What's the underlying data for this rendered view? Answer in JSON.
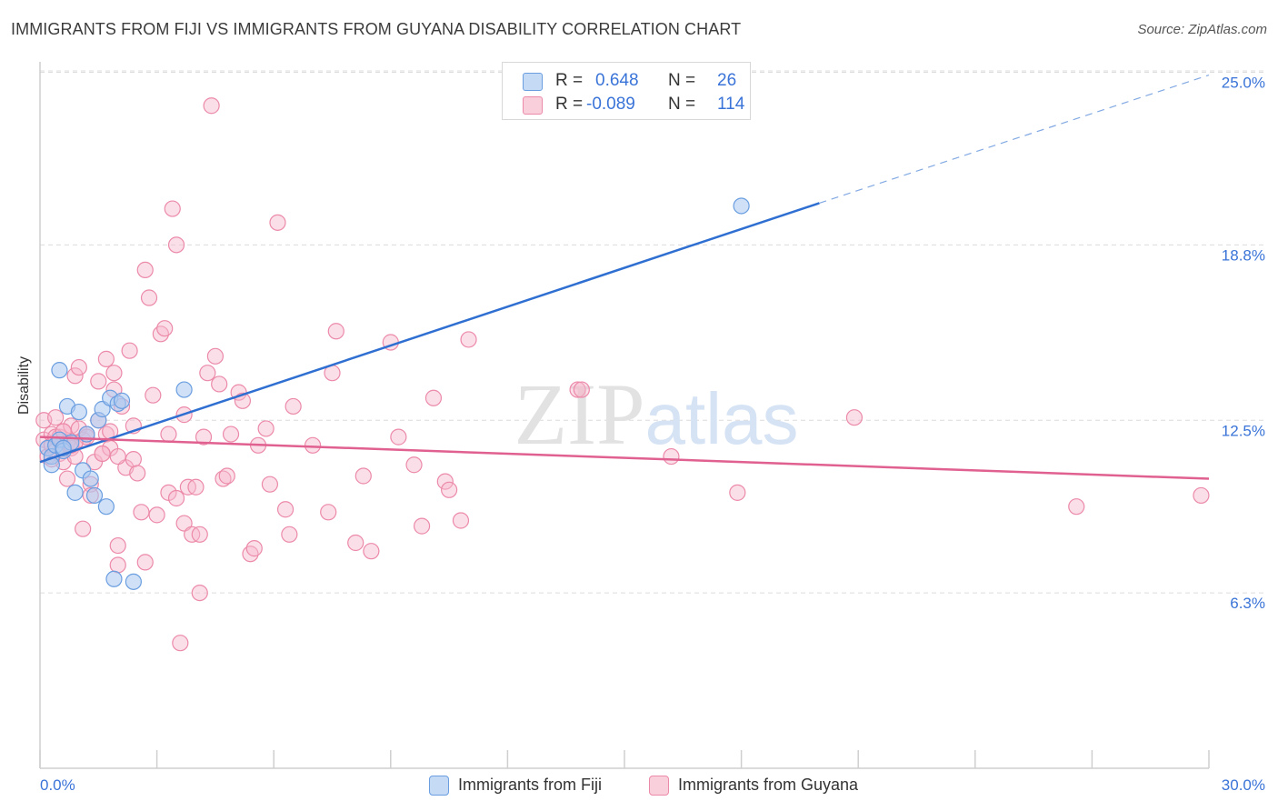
{
  "title": "IMMIGRANTS FROM FIJI VS IMMIGRANTS FROM GUYANA DISABILITY CORRELATION CHART",
  "source": "Source: ZipAtlas.com",
  "watermark": "ZIPatlas",
  "colors": {
    "fiji_fill": "#a9c8f0",
    "fiji_stroke": "#6a9ee0",
    "fiji_line": "#2f6fd1",
    "guyana_fill": "#f6b8cb",
    "guyana_stroke": "#ec8aa9",
    "guyana_line": "#e0608f",
    "tick_label": "#3a74d8",
    "grid": "#dcdcdc"
  },
  "legend": {
    "r_label": "R =",
    "n_label": "N =",
    "fiji": {
      "r": "0.648",
      "n": "26"
    },
    "guyana": {
      "r": "-0.089",
      "n": "114"
    }
  },
  "chart_data": {
    "type": "scatter",
    "ylabel": "Disability",
    "xlim": [
      0,
      30
    ],
    "ylim": [
      0,
      26
    ],
    "x_tick_labels": [
      "0.0%",
      "30.0%"
    ],
    "y_ticks": [
      6.3,
      12.5,
      18.8,
      25.0
    ],
    "y_tick_labels": [
      "6.3%",
      "12.5%",
      "18.8%",
      "25.0%"
    ],
    "grid": "horizontal dashed",
    "legend_position": "top-center",
    "series": [
      {
        "name": "Immigrants from Fiji",
        "trend": {
          "x": [
            0,
            20
          ],
          "y": [
            11.0,
            20.3
          ],
          "dashed_extension_to": [
            30,
            24.9
          ]
        },
        "points": [
          [
            0.2,
            11.5
          ],
          [
            0.3,
            11.2
          ],
          [
            0.3,
            10.9
          ],
          [
            0.4,
            11.6
          ],
          [
            0.5,
            11.8
          ],
          [
            0.5,
            14.3
          ],
          [
            0.6,
            11.4
          ],
          [
            0.7,
            13.0
          ],
          [
            0.8,
            11.7
          ],
          [
            0.9,
            9.9
          ],
          [
            1.0,
            12.8
          ],
          [
            1.1,
            10.7
          ],
          [
            1.2,
            12.0
          ],
          [
            1.3,
            10.4
          ],
          [
            1.4,
            9.8
          ],
          [
            1.5,
            12.5
          ],
          [
            1.6,
            12.9
          ],
          [
            1.7,
            9.4
          ],
          [
            1.8,
            13.3
          ],
          [
            1.9,
            6.8
          ],
          [
            2.0,
            13.1
          ],
          [
            2.1,
            13.2
          ],
          [
            2.4,
            6.7
          ],
          [
            3.7,
            13.6
          ],
          [
            18.0,
            20.2
          ],
          [
            0.6,
            11.5
          ]
        ]
      },
      {
        "name": "Immigrants from Guyana",
        "trend": {
          "x": [
            0,
            30
          ],
          "y": [
            11.9,
            10.4
          ]
        },
        "points": [
          [
            0.1,
            11.8
          ],
          [
            0.1,
            12.5
          ],
          [
            0.2,
            11.5
          ],
          [
            0.2,
            11.2
          ],
          [
            0.3,
            12.0
          ],
          [
            0.3,
            11.6
          ],
          [
            0.4,
            11.4
          ],
          [
            0.4,
            12.6
          ],
          [
            0.5,
            11.3
          ],
          [
            0.5,
            11.9
          ],
          [
            0.6,
            12.1
          ],
          [
            0.6,
            11.0
          ],
          [
            0.7,
            11.7
          ],
          [
            0.7,
            10.4
          ],
          [
            0.8,
            11.5
          ],
          [
            0.8,
            12.3
          ],
          [
            0.9,
            14.1
          ],
          [
            0.9,
            11.2
          ],
          [
            1.0,
            14.4
          ],
          [
            1.0,
            12.2
          ],
          [
            1.1,
            8.6
          ],
          [
            1.1,
            11.8
          ],
          [
            1.2,
            11.9
          ],
          [
            1.3,
            10.2
          ],
          [
            1.3,
            9.8
          ],
          [
            1.4,
            11.0
          ],
          [
            1.5,
            12.5
          ],
          [
            1.5,
            13.9
          ],
          [
            1.6,
            11.3
          ],
          [
            1.7,
            12.0
          ],
          [
            1.7,
            14.7
          ],
          [
            1.8,
            11.5
          ],
          [
            1.8,
            12.1
          ],
          [
            1.9,
            14.2
          ],
          [
            1.9,
            13.6
          ],
          [
            2.0,
            8.0
          ],
          [
            2.0,
            7.3
          ],
          [
            2.1,
            13.0
          ],
          [
            2.2,
            10.8
          ],
          [
            2.3,
            15.0
          ],
          [
            2.4,
            12.3
          ],
          [
            2.4,
            11.1
          ],
          [
            2.5,
            10.6
          ],
          [
            2.6,
            9.2
          ],
          [
            2.7,
            17.9
          ],
          [
            2.7,
            7.4
          ],
          [
            2.8,
            16.9
          ],
          [
            2.9,
            13.4
          ],
          [
            3.0,
            9.1
          ],
          [
            3.1,
            15.6
          ],
          [
            3.2,
            15.8
          ],
          [
            3.3,
            12.0
          ],
          [
            3.3,
            9.9
          ],
          [
            3.4,
            20.1
          ],
          [
            3.5,
            18.8
          ],
          [
            3.5,
            9.7
          ],
          [
            3.6,
            4.5
          ],
          [
            3.7,
            12.7
          ],
          [
            3.7,
            8.8
          ],
          [
            3.8,
            10.1
          ],
          [
            3.9,
            8.4
          ],
          [
            4.0,
            10.1
          ],
          [
            4.1,
            6.3
          ],
          [
            4.1,
            8.4
          ],
          [
            4.2,
            11.9
          ],
          [
            4.3,
            14.2
          ],
          [
            4.4,
            23.8
          ],
          [
            4.5,
            14.8
          ],
          [
            4.6,
            13.8
          ],
          [
            4.7,
            10.4
          ],
          [
            4.8,
            10.5
          ],
          [
            4.9,
            12.0
          ],
          [
            5.1,
            13.5
          ],
          [
            5.2,
            13.2
          ],
          [
            5.4,
            7.7
          ],
          [
            5.5,
            7.9
          ],
          [
            5.6,
            11.6
          ],
          [
            5.8,
            12.2
          ],
          [
            5.9,
            10.2
          ],
          [
            6.1,
            19.6
          ],
          [
            6.3,
            9.3
          ],
          [
            6.4,
            8.4
          ],
          [
            6.5,
            13.0
          ],
          [
            7.0,
            11.6
          ],
          [
            7.4,
            9.2
          ],
          [
            7.5,
            14.2
          ],
          [
            7.6,
            15.7
          ],
          [
            8.1,
            8.1
          ],
          [
            8.3,
            10.5
          ],
          [
            8.5,
            7.8
          ],
          [
            9.0,
            15.3
          ],
          [
            9.2,
            11.9
          ],
          [
            9.6,
            10.9
          ],
          [
            9.8,
            8.7
          ],
          [
            10.1,
            13.3
          ],
          [
            10.4,
            10.3
          ],
          [
            10.5,
            10.0
          ],
          [
            10.8,
            8.9
          ],
          [
            11.0,
            15.4
          ],
          [
            13.8,
            13.6
          ],
          [
            13.9,
            13.6
          ],
          [
            16.2,
            11.2
          ],
          [
            17.9,
            9.9
          ],
          [
            20.9,
            12.6
          ],
          [
            26.6,
            9.4
          ],
          [
            29.8,
            9.8
          ],
          [
            0.4,
            11.9
          ],
          [
            0.8,
            11.6
          ],
          [
            1.2,
            12.0
          ],
          [
            1.6,
            11.3
          ],
          [
            2.0,
            11.2
          ],
          [
            0.3,
            11.1
          ],
          [
            0.6,
            12.1
          ],
          [
            0.9,
            11.7
          ]
        ]
      }
    ]
  }
}
